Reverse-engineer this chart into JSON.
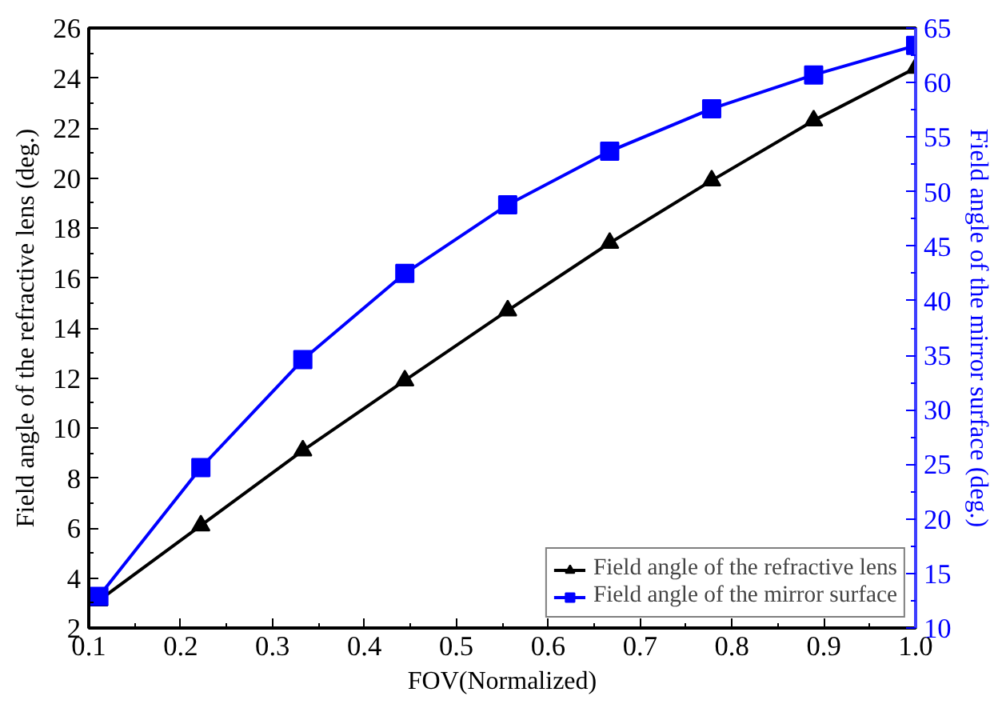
{
  "chart_data": {
    "type": "line",
    "xlabel": "FOV(Normalized)",
    "ylabel": "Field angle of the refractive lens (deg.)",
    "y2label": "Field angle of the mirror surface (deg.)",
    "x": [
      0.111,
      0.222,
      0.333,
      0.444,
      0.556,
      0.667,
      0.778,
      0.889,
      1.0
    ],
    "series": [
      {
        "name": "Field angle of the refractive lens",
        "color": "#000000",
        "marker": "triangle",
        "values": [
          3.1,
          6.1,
          9.1,
          11.9,
          14.7,
          17.4,
          19.9,
          22.3,
          24.4
        ]
      },
      {
        "name": "Field angle of the mirror surface",
        "color": "#0000ff",
        "marker": "square",
        "axis": "y2",
        "values": [
          12.9,
          24.7,
          34.6,
          42.5,
          48.8,
          53.7,
          57.6,
          60.7,
          63.4
        ]
      }
    ],
    "xlim": [
      0.1,
      1.0
    ],
    "xticks": [
      0.1,
      0.2,
      0.3,
      0.4,
      0.5,
      0.6,
      0.7,
      0.8,
      0.9,
      {
        "value": 1.0,
        "label": "1.0"
      }
    ],
    "ylim": [
      2,
      26
    ],
    "yticks": [
      2,
      4,
      6,
      8,
      10,
      12,
      14,
      16,
      18,
      20,
      22,
      24,
      26
    ],
    "y2lim": [
      10,
      65
    ],
    "y2ticks": [
      10,
      15,
      20,
      25,
      30,
      35,
      40,
      45,
      50,
      55,
      60,
      65
    ],
    "grid": false,
    "legend": "bottom right",
    "line_style": "solid"
  }
}
